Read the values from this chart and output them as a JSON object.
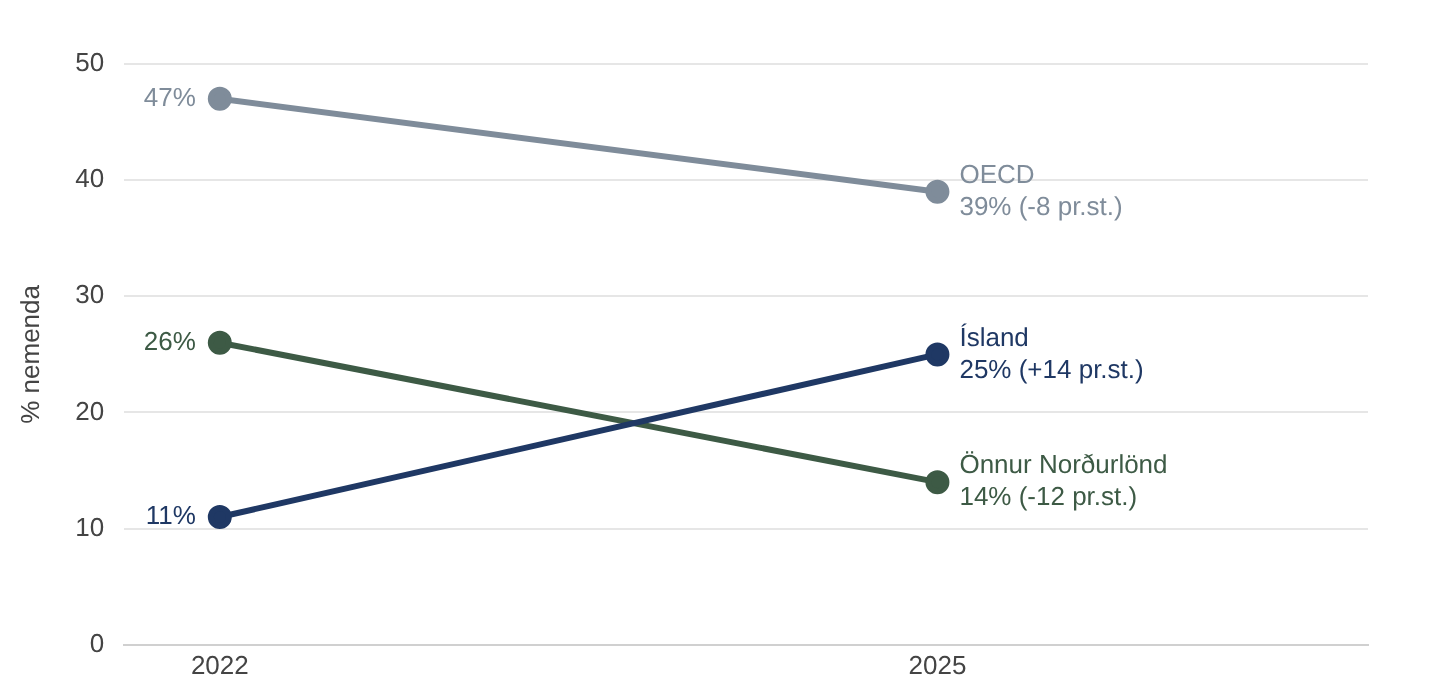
{
  "chart_data": {
    "type": "line",
    "ylabel": "% nemenda",
    "x": [
      2022,
      2025
    ],
    "xlim": [
      2021.6,
      2026.8
    ],
    "xticks": [
      2022,
      2025
    ],
    "ylim": [
      0,
      50
    ],
    "yticks": [
      0,
      10,
      20,
      30,
      40,
      50
    ],
    "grid": "y",
    "legend": false,
    "marker": "circle",
    "line_style": "solid",
    "series": [
      {
        "name": "OECD",
        "color": "#7f8c9a",
        "values": [
          47,
          39
        ],
        "value_labels": [
          "47%",
          "39% (-8 pr.st.)"
        ]
      },
      {
        "name": "Ísland",
        "color": "#1f3864",
        "values": [
          11,
          25
        ],
        "value_labels": [
          "11%",
          "25% (+14 pr.st.)"
        ]
      },
      {
        "name": "Önnur Norðurlönd",
        "color": "#3d5a45",
        "values": [
          26,
          14
        ],
        "value_labels": [
          "26%",
          "14% (-12 pr.st.)"
        ]
      }
    ]
  }
}
